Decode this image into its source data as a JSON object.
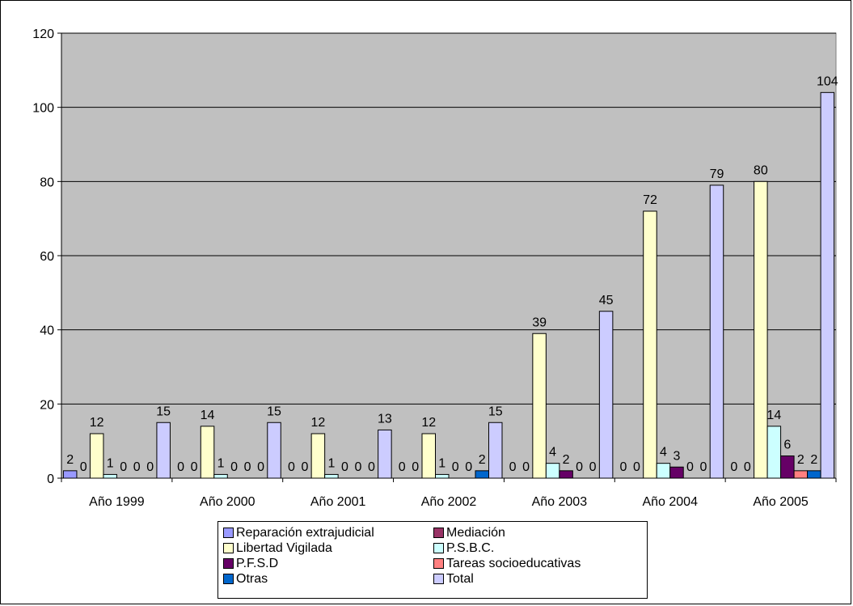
{
  "chart_data": {
    "type": "bar",
    "categories": [
      "Año 1999",
      "Año 2000",
      "Año 2001",
      "Año 2002",
      "Año 2003",
      "Año 2004",
      "Año 2005"
    ],
    "ylim": [
      0,
      120
    ],
    "yticks": [
      0,
      20,
      40,
      60,
      80,
      100,
      120
    ],
    "grid": true,
    "legend_position": "bottom",
    "title": "",
    "xlabel": "",
    "ylabel": "",
    "series": [
      {
        "name": "Reparación extrajudicial",
        "color": "#9999FF",
        "values": [
          2,
          0,
          0,
          0,
          0,
          0,
          0
        ]
      },
      {
        "name": "Mediación",
        "color": "#993366",
        "values": [
          0,
          0,
          0,
          0,
          0,
          0,
          0
        ]
      },
      {
        "name": "Libertad Vigilada",
        "color": "#FFFFCC",
        "values": [
          12,
          14,
          12,
          12,
          39,
          72,
          80
        ]
      },
      {
        "name": "P.S.B.C.",
        "color": "#CCFFFF",
        "values": [
          1,
          1,
          1,
          1,
          4,
          4,
          14
        ]
      },
      {
        "name": "P.F.S.D",
        "color": "#660066",
        "values": [
          0,
          0,
          0,
          0,
          2,
          3,
          6
        ]
      },
      {
        "name": "Tareas socioeducativas",
        "color": "#FF8080",
        "values": [
          0,
          0,
          0,
          0,
          0,
          0,
          2
        ]
      },
      {
        "name": "Otras",
        "color": "#0066CC",
        "values": [
          0,
          0,
          0,
          2,
          0,
          0,
          2
        ]
      },
      {
        "name": "Total",
        "color": "#CCCCFF",
        "values": [
          15,
          15,
          13,
          15,
          45,
          79,
          104
        ]
      }
    ]
  }
}
